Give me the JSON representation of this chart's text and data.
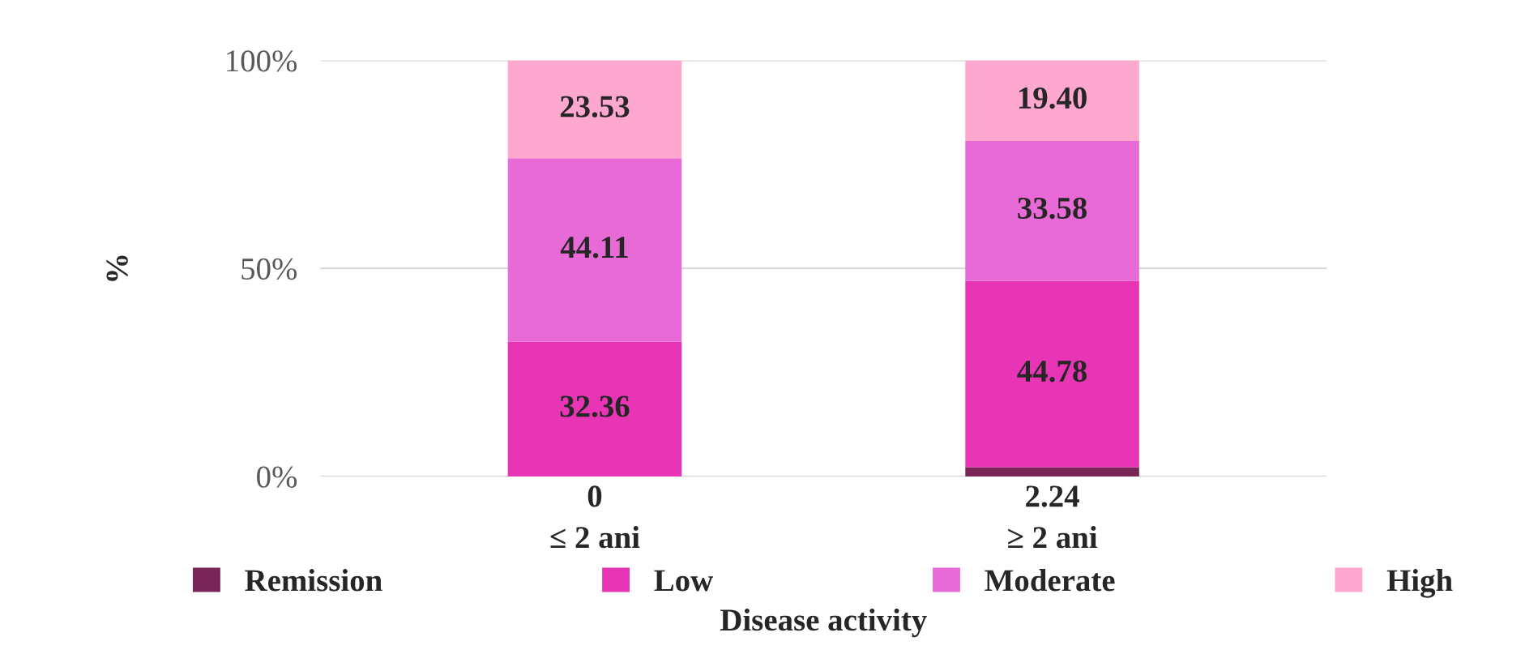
{
  "chart_data": {
    "type": "bar",
    "stacked": true,
    "categories": [
      "≤ 2 ani",
      "≥ 2 ani"
    ],
    "series": [
      {
        "name": "Remission",
        "color": "#7a2458",
        "values": [
          0,
          2.24
        ],
        "value_labels": [
          "0",
          "2.24"
        ]
      },
      {
        "name": "Low",
        "color": "#e835b5",
        "values": [
          32.36,
          44.78
        ],
        "value_labels": [
          "32.36",
          "44.78"
        ]
      },
      {
        "name": "Moderate",
        "color": "#e86ad6",
        "values": [
          44.11,
          33.58
        ],
        "value_labels": [
          "44.11",
          "33.58"
        ]
      },
      {
        "name": "High",
        "color": "#ffa8cf",
        "values": [
          23.53,
          19.4
        ],
        "value_labels": [
          "23.53",
          "19.40"
        ]
      }
    ],
    "xlabel": "Disease activity",
    "ylabel": "%",
    "ylim": [
      0,
      100
    ],
    "yticks": [
      {
        "value": 0,
        "label": "0%"
      },
      {
        "value": 50,
        "label": "50%"
      },
      {
        "value": 100,
        "label": "100%"
      }
    ],
    "grid": "y",
    "legend": "bottom"
  }
}
